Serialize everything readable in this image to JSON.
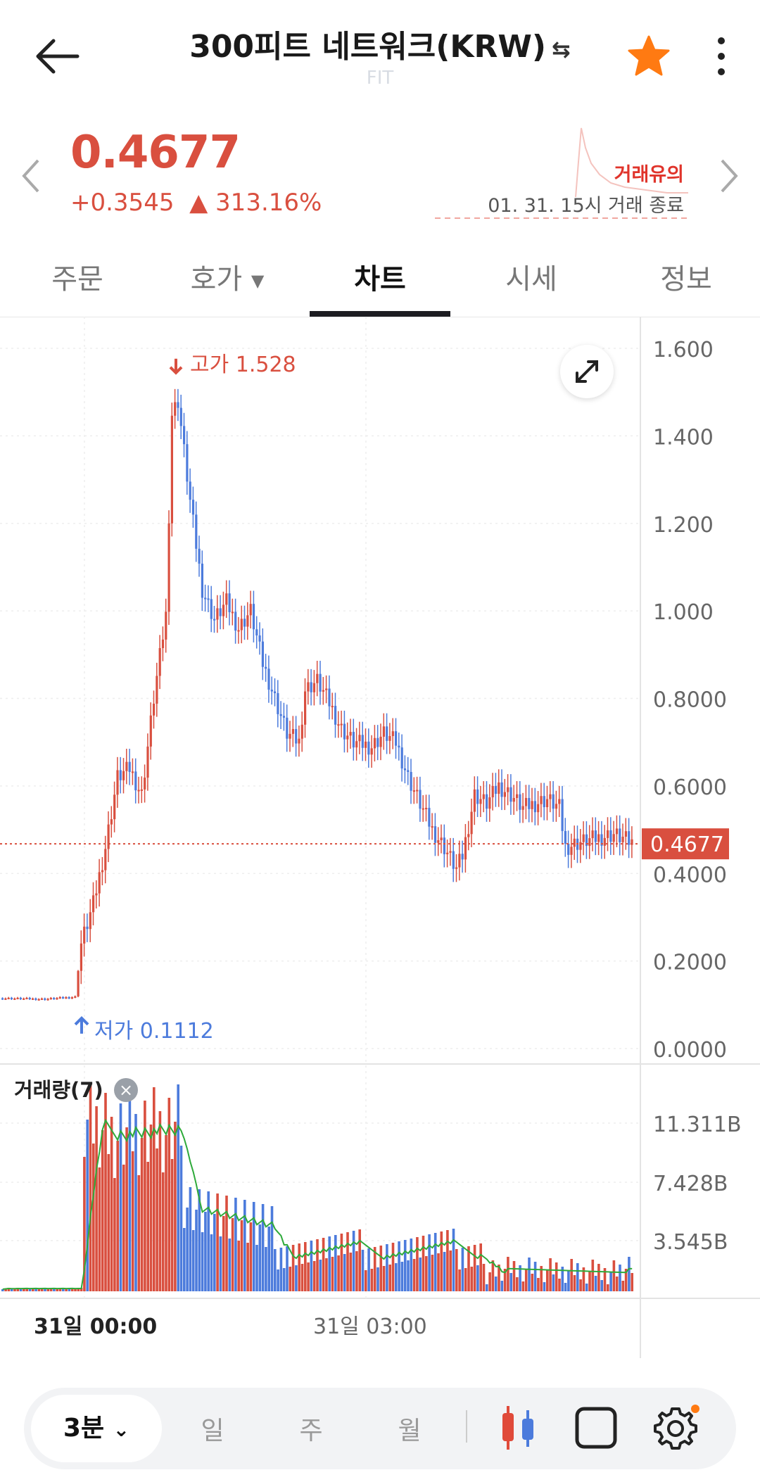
{
  "header": {
    "title": "300피트 네트워크(KRW)",
    "swap_icon": "⇆",
    "subtitle": "FIT",
    "star_color": "#ff7a12"
  },
  "price": {
    "current": "0.4677",
    "change_abs": "+0.3545",
    "change_pct": "▲ 313.16%",
    "caution": "거래유의",
    "trade_status": "01. 31. 15시 거래 종료",
    "up_color": "#d94f3f",
    "down_color": "#4c7bdc"
  },
  "tabs": [
    {
      "label": "주문"
    },
    {
      "label": "호가"
    },
    {
      "label": "차트"
    },
    {
      "label": "시세"
    },
    {
      "label": "정보"
    }
  ],
  "chart_data": {
    "type": "candlestick",
    "ylim": [
      0,
      1.6
    ],
    "y_ticks": [
      "1.600",
      "1.400",
      "1.200",
      "1.000",
      "0.8000",
      "0.6000",
      "0.4000",
      "0.2000",
      "0.0000"
    ],
    "current_price_tag": "0.4677",
    "high_label": "고가 1.528",
    "low_label": "저가 0.1112",
    "x_ticks": [
      "31일 00:00",
      "31일 03:00"
    ],
    "volume": {
      "label": "거래량(7)",
      "y_ticks": [
        "11.311B",
        "7.428B",
        "3.545B"
      ]
    }
  },
  "toolbar": {
    "interval": "3분",
    "day": "일",
    "week": "주",
    "month": "월"
  }
}
